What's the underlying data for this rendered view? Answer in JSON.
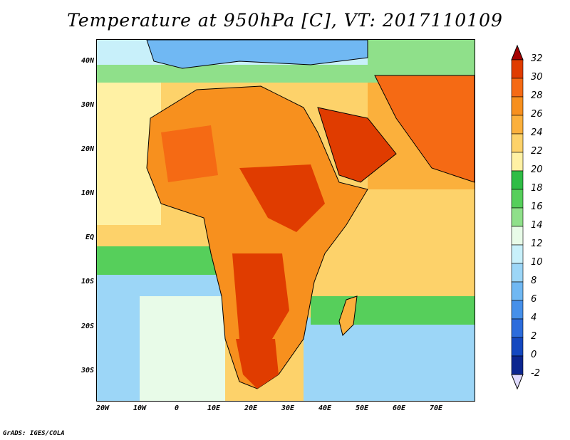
{
  "title": "Temperature at 950hPa [C], VT: 2017110109",
  "credit": "GrADS: IGES/COLA",
  "map": {
    "lat_labels": [
      "40N",
      "30N",
      "20N",
      "10N",
      "EQ",
      "10S",
      "20S",
      "30S"
    ],
    "lon_labels": [
      "20W",
      "10W",
      "0",
      "10E",
      "20E",
      "30E",
      "40E",
      "50E",
      "60E",
      "70E"
    ],
    "lat_range": [
      -37,
      45
    ],
    "lon_range": [
      -22,
      80
    ]
  },
  "colorbar": {
    "labels": [
      "32",
      "30",
      "28",
      "26",
      "24",
      "22",
      "20",
      "18",
      "16",
      "14",
      "12",
      "10",
      "8",
      "6",
      "4",
      "2",
      "0",
      "-2"
    ],
    "colors": [
      "#a50000",
      "#e03c00",
      "#f56a14",
      "#f7901e",
      "#fbb03c",
      "#fdd26a",
      "#fff1a4",
      "#2fbd46",
      "#56cf5b",
      "#8fe08a",
      "#e8fbe8",
      "#c8f0fa",
      "#9cd6f7",
      "#70b8f3",
      "#4690ea",
      "#2c6cdc",
      "#1448c0",
      "#0c2690",
      "#e1dcff"
    ]
  }
}
